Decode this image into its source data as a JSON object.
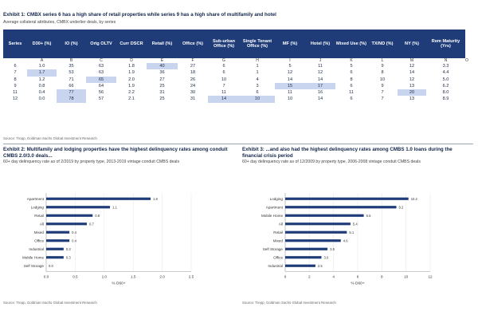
{
  "exhibit1": {
    "title": "Exhibit 1: CMBX series 6 has a high share of retail properties while series 9 has a high share of multifamily and hotel",
    "subtitle": "Average collateral attributes, CMBX underlier deals, by series",
    "letters": [
      "A",
      "B",
      "C",
      "D",
      "E",
      "F",
      "G",
      "H",
      "I",
      "J",
      "K",
      "L",
      "M",
      "N",
      "O"
    ],
    "headers": [
      "Series",
      "D30+ (%)",
      "IO (%)",
      "Orig OLTV",
      "Curr DSCR",
      "Retail (%)",
      "Office (%)",
      "Sub-urban Office (%)",
      "Single Tenant Office (%)",
      "MF (%)",
      "Hotel (%)",
      "Mixed Use (%)",
      "TX/ND (%)",
      "NY (%)",
      "Rem Maturity (Yrs)"
    ],
    "rows": [
      [
        "6",
        "1.0",
        "35",
        "63",
        "1.8",
        "40",
        "27",
        "6",
        "1",
        "5",
        "11",
        "5",
        "9",
        "12",
        "3.3"
      ],
      [
        "7",
        "1.7",
        "53",
        "63",
        "1.9",
        "36",
        "18",
        "6",
        "1",
        "12",
        "12",
        "6",
        "8",
        "14",
        "4.4"
      ],
      [
        "8",
        "1.2",
        "71",
        "65",
        "2.0",
        "27",
        "26",
        "10",
        "4",
        "14",
        "14",
        "8",
        "10",
        "12",
        "5.0"
      ],
      [
        "9",
        "0.8",
        "66",
        "64",
        "1.9",
        "25",
        "24",
        "7",
        "3",
        "15",
        "17",
        "6",
        "9",
        "13",
        "6.2"
      ],
      [
        "11",
        "0.4",
        "77",
        "56",
        "2.2",
        "31",
        "30",
        "11",
        "6",
        "11",
        "16",
        "11",
        "7",
        "20",
        "8.0"
      ],
      [
        "12",
        "0.0",
        "78",
        "57",
        "2.1",
        "25",
        "31",
        "14",
        "10",
        "10",
        "14",
        "6",
        "7",
        "13",
        "8.9"
      ]
    ],
    "source": "Source: Trepp, Goldman Sachs Global Investment Research"
  },
  "exhibit2": {
    "title": "Exhibit 2: Multifamily and lodging properties have the highest delinquency rates among conduit CMBS 2.0/3.0 deals...",
    "subtitle": "60+ day delinquency rate as of 2/2019 by property type, 2013-2019 vintage conduit CMBS deals",
    "source": "Source: Trepp, Goldman Sachs Global Investment Research"
  },
  "exhibit3": {
    "title": "Exhibit 3: ...and also had the highest delinquency rates among CMBS 1.0 loans during the financial crisis period",
    "subtitle": "60+ day delinquency rate as of 12/2009 by property type, 2006-2008 vintage conduit CMBS deals",
    "source": "Source: Trepp, Goldman Sachs Global Investment Research"
  },
  "chart_data": [
    {
      "type": "bar",
      "orientation": "horizontal",
      "categories": [
        "Apartment",
        "Lodging",
        "Retail",
        "All",
        "Mixed",
        "Office",
        "Industrial",
        "Mobile Home",
        "Self Storage"
      ],
      "values": [
        1.8,
        1.1,
        0.8,
        0.7,
        0.4,
        0.4,
        0.3,
        0.3,
        0.0
      ],
      "xlabel": "% D60+",
      "xlim": [
        0,
        2.5
      ],
      "xticks": [
        "0.0",
        "0.5",
        "1.0",
        "1.5",
        "2.0",
        "2.5"
      ],
      "color": "#1f3c78"
    },
    {
      "type": "bar",
      "orientation": "horizontal",
      "categories": [
        "Lodging",
        "Apartment",
        "Mobile Home",
        "All",
        "Retail",
        "Mixed",
        "Self Storage",
        "Office",
        "Industrial"
      ],
      "values": [
        10.2,
        9.2,
        6.5,
        5.4,
        5.1,
        4.6,
        3.5,
        3.0,
        2.5
      ],
      "xlabel": "% D60+",
      "xlim": [
        0,
        12
      ],
      "xticks": [
        "0",
        "2",
        "4",
        "6",
        "8",
        "10",
        "12"
      ],
      "color": "#1f3c78"
    }
  ]
}
